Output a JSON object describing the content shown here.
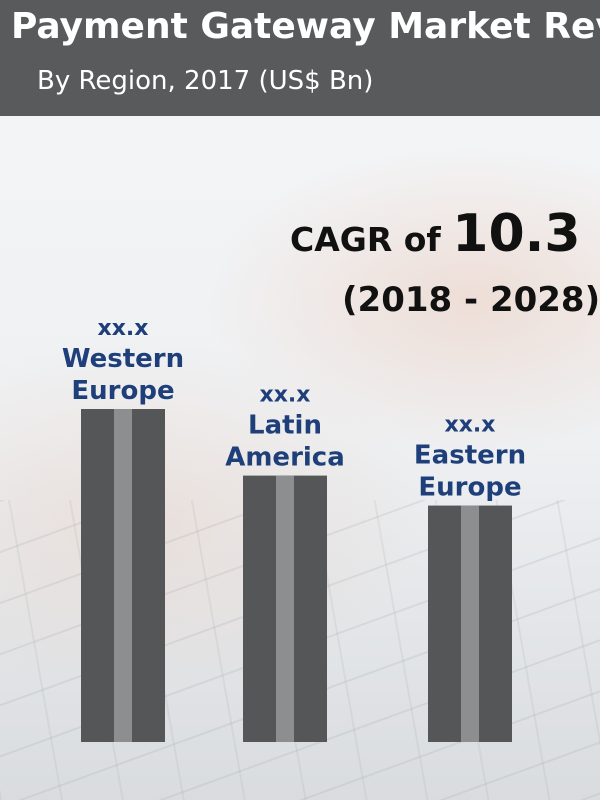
{
  "header": {
    "title": "e Payment Gateway Market Rev",
    "subtitle": "By Region, 2017 (US$ Bn)"
  },
  "annotation": {
    "cagr_label": "CAGR of ",
    "cagr_value": "10.3",
    "period": "(2018 - 2028)"
  },
  "colors": {
    "header_bg": "#585a5c",
    "bar": "#545658",
    "bar_highlight": "#8c8e90",
    "label": "#1f3f7a"
  },
  "chart_data": {
    "type": "bar",
    "title": "e Payment Gateway Market Rev",
    "subtitle": "By Region, 2017 (US$ Bn)",
    "categories": [
      "Western Europe",
      "Latin America",
      "Eastern Europe"
    ],
    "value_labels": [
      "xx.x",
      "xx.x",
      "xx.x"
    ],
    "values": [
      100,
      80,
      71
    ],
    "value_note": "relative bar heights (values masked as xx.x)",
    "category_label_lines": [
      [
        "Western",
        "Europe"
      ],
      [
        "Latin",
        "America"
      ],
      [
        "Eastern",
        "Europe"
      ]
    ],
    "legend": "none",
    "grid": false
  }
}
